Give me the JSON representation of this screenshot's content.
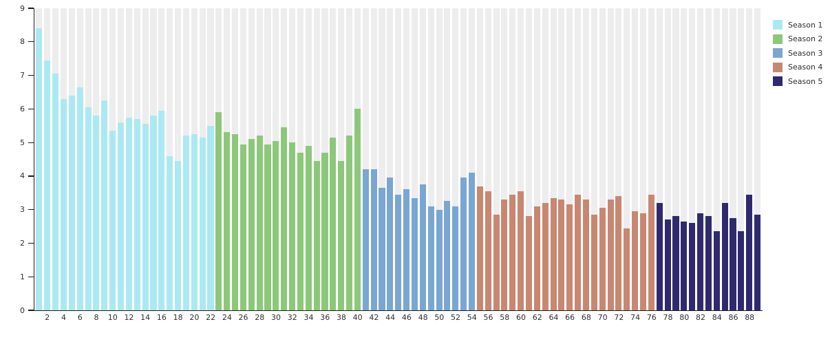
{
  "chart_data": {
    "type": "bar",
    "title": "",
    "xlabel": "",
    "ylabel": "",
    "ylim": [
      0,
      9
    ],
    "y_ticks": [
      0,
      1,
      2,
      3,
      4,
      5,
      6,
      7,
      8,
      9
    ],
    "x_tick_first": 2,
    "x_tick_interval": 2,
    "x_tick_last": 88,
    "total_bars": 89,
    "grid": false,
    "background_stripes": true,
    "stripe_color": "#ededed",
    "legend_position": "top-right",
    "series": [
      {
        "name": "Season 1",
        "color": "#abe9f2",
        "x_start": 1,
        "values": [
          8.4,
          7.45,
          7.05,
          6.3,
          6.4,
          6.65,
          6.05,
          5.8,
          6.25,
          5.35,
          5.6,
          5.75,
          5.7,
          5.55,
          5.8,
          5.95,
          4.6,
          4.45,
          5.2,
          5.25,
          5.15,
          5.5
        ]
      },
      {
        "name": "Season 2",
        "color": "#8cc87a",
        "x_start": 23,
        "values": [
          5.9,
          5.3,
          5.25,
          4.95,
          5.1,
          5.2,
          4.95,
          5.05,
          5.45,
          5.0,
          4.7,
          4.9,
          4.45,
          4.7,
          5.15,
          4.45,
          5.2,
          6.0
        ]
      },
      {
        "name": "Season 3",
        "color": "#7aa6d2",
        "x_start": 41,
        "values": [
          4.2,
          4.2,
          3.65,
          3.95,
          3.45,
          3.6,
          3.35,
          3.75,
          3.1,
          3.0,
          3.25,
          3.1,
          3.95,
          4.1
        ]
      },
      {
        "name": "Season 4",
        "color": "#c88771",
        "x_start": 55,
        "values": [
          3.7,
          3.55,
          2.85,
          3.3,
          3.45,
          3.55,
          2.8,
          3.1,
          3.2,
          3.35,
          3.3,
          3.15,
          3.45,
          3.3,
          2.85,
          3.05,
          3.3,
          3.4,
          2.45,
          2.95,
          2.9,
          3.45
        ]
      },
      {
        "name": "Season 5",
        "color": "#2f2a6e",
        "x_start": 77,
        "values": [
          3.2,
          2.7,
          2.8,
          2.65,
          2.6,
          2.9,
          2.8,
          2.35,
          3.2,
          2.75,
          2.35,
          3.45,
          2.85
        ]
      }
    ]
  }
}
